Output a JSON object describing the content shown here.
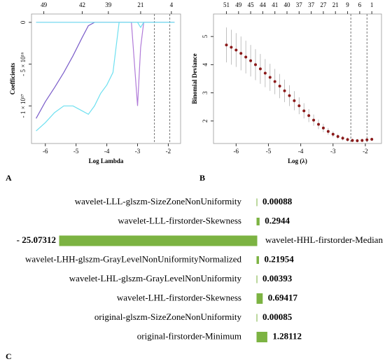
{
  "chart_data": [
    {
      "type": "line",
      "label": "A",
      "xlabel": "Log Lambda",
      "ylabel": "Coefficients",
      "xlim": [
        -6.45,
        -1.6
      ],
      "xticks": [
        -6,
        -5,
        -4,
        -3,
        -2
      ],
      "x2ticks": [
        {
          "value": -6.05,
          "label": "49"
        },
        {
          "value": -4.8,
          "label": "42"
        },
        {
          "value": -3.95,
          "label": "39"
        },
        {
          "value": -2.9,
          "label": "21"
        },
        {
          "value": -1.9,
          "label": "4"
        }
      ],
      "ylim": [
        -1.45e+17,
        1e+16
      ],
      "yticks": [
        {
          "value": -1e+17,
          "label": "- 1 × 10¹⁷"
        },
        {
          "value": -5e+16,
          "label": "- 5 × 10¹⁶"
        },
        0
      ],
      "vlines": [
        -2.45,
        -1.95
      ],
      "x": [
        -6.3,
        -6.0,
        -5.7,
        -5.4,
        -5.1,
        -4.8,
        -4.6,
        -4.4,
        -4.2,
        -4.0,
        -3.8,
        -3.6,
        -3.4,
        -3.2,
        -3.1,
        -3.0,
        -2.9,
        -2.8,
        -2.6,
        -2.4,
        -2.2,
        -2.0,
        -1.8
      ],
      "series": [
        {
          "color": "#7a5cc9",
          "values": [
            -1.15e+17,
            -9.5e+16,
            -7.8e+16,
            -6e+16,
            -4e+16,
            -1.8e+16,
            -4000000000000000.0,
            0,
            0,
            0,
            0,
            0,
            0,
            0,
            0,
            0,
            0,
            0,
            0,
            0,
            0,
            0,
            0
          ]
        },
        {
          "color": "#6ee0f0",
          "values": [
            -1.3e+17,
            -1.2e+17,
            -1.08e+17,
            -1e+17,
            -1e+17,
            -1.06e+17,
            -1.1e+17,
            -1e+17,
            -8.5e+16,
            -7.5e+16,
            -6e+16,
            0,
            0,
            0,
            0,
            0,
            0,
            0,
            0,
            0,
            0,
            0,
            0
          ]
        },
        {
          "color": "#b07ad8",
          "values": [
            0,
            0,
            0,
            0,
            0,
            0,
            0,
            0,
            0,
            0,
            0,
            0,
            0,
            0,
            -5e+16,
            -1e+17,
            -3e+16,
            0,
            0,
            0,
            0,
            0,
            0
          ]
        },
        {
          "color": "#6ee0f0",
          "values": [
            0,
            0,
            0,
            0,
            0,
            0,
            0,
            0,
            0,
            0,
            0,
            0,
            0,
            0,
            0,
            0,
            -6000000000000000.0,
            0,
            0,
            0,
            0,
            0,
            0
          ]
        }
      ]
    },
    {
      "type": "scatter",
      "label": "B",
      "xlabel": "Log (λ)",
      "ylabel": "Binomial Deviance",
      "xlim": [
        -6.7,
        -1.5
      ],
      "xticks": [
        -6,
        -5,
        -4,
        -3,
        -2
      ],
      "x2ticks": [
        {
          "value": -6.3,
          "label": "51"
        },
        {
          "value": -5.925,
          "label": "49"
        },
        {
          "value": -5.55,
          "label": "45"
        },
        {
          "value": -5.175,
          "label": "44"
        },
        {
          "value": -4.8,
          "label": "41"
        },
        {
          "value": -4.425,
          "label": "40"
        },
        {
          "value": -4.05,
          "label": "37"
        },
        {
          "value": -3.675,
          "label": "37"
        },
        {
          "value": -3.3,
          "label": "27"
        },
        {
          "value": -2.925,
          "label": "21"
        },
        {
          "value": -2.55,
          "label": "9"
        },
        {
          "value": -2.175,
          "label": "6"
        },
        {
          "value": -1.8,
          "label": "1"
        }
      ],
      "ylim": [
        1.2,
        5.8
      ],
      "yticks": [
        2,
        3,
        4,
        5
      ],
      "vlines": [
        -2.45,
        -1.95
      ],
      "color": "#8b1a1a",
      "error_color": "#b0b0b0",
      "x": [
        -6.3,
        -6.15,
        -6.0,
        -5.85,
        -5.7,
        -5.55,
        -5.4,
        -5.25,
        -5.1,
        -4.95,
        -4.8,
        -4.65,
        -4.5,
        -4.35,
        -4.2,
        -4.05,
        -3.9,
        -3.75,
        -3.6,
        -3.45,
        -3.3,
        -3.15,
        -3.0,
        -2.85,
        -2.7,
        -2.55,
        -2.4,
        -2.25,
        -2.1,
        -1.95,
        -1.8
      ],
      "values": [
        4.7,
        4.62,
        4.52,
        4.4,
        4.27,
        4.14,
        4.0,
        3.85,
        3.7,
        3.55,
        3.4,
        3.24,
        3.07,
        2.9,
        2.72,
        2.54,
        2.36,
        2.19,
        2.03,
        1.88,
        1.75,
        1.63,
        1.53,
        1.45,
        1.39,
        1.34,
        1.31,
        1.3,
        1.31,
        1.33,
        1.35
      ],
      "errors": [
        0.62,
        0.62,
        0.6,
        0.6,
        0.58,
        0.56,
        0.55,
        0.53,
        0.5,
        0.48,
        0.45,
        0.43,
        0.4,
        0.37,
        0.34,
        0.3,
        0.27,
        0.23,
        0.2,
        0.17,
        0.15,
        0.12,
        0.1,
        0.09,
        0.08,
        0.07,
        0.06,
        0.06,
        0.06,
        0.06,
        0.06
      ]
    },
    {
      "type": "bar",
      "label": "C",
      "orientation": "horizontal",
      "color": "#7cb342",
      "categories": [
        "wavelet-LLL-glszm-SizeZoneNonUniformity",
        "wavelet-LLL-firstorder-Skewness",
        "wavelet-HHL-firstorder-Median",
        "wavelet-LHH-glszm-GrayLevelNonUniformityNormalized",
        "wavelet-LHL-glszm-GrayLevelNonUniformity",
        "wavelet-LHL-firstorder-Skewness",
        "original-glszm-SizeZoneNonUniformity",
        "original-firstorder-Minimum"
      ],
      "values": [
        0.00088,
        0.2944,
        -25.07312,
        0.21954,
        0.00393,
        0.69417,
        0.00085,
        1.28112
      ],
      "value_labels": [
        "0.00088",
        "0.2944",
        "- 25.07312",
        "0.21954",
        "0.00393",
        "0.69417",
        "0.00085",
        "1.28112"
      ]
    }
  ]
}
